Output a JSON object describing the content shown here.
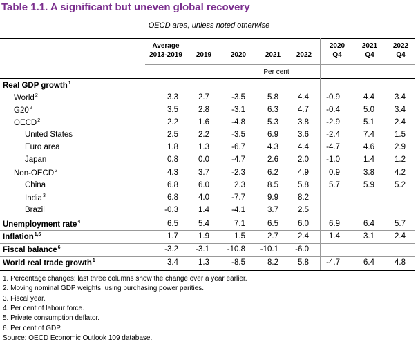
{
  "header": {
    "title": "Table 1.1. A significant but uneven global recovery",
    "subtitle": "OECD area, unless noted otherwise"
  },
  "table": {
    "columns": [
      [
        "Average",
        "2013-2019"
      ],
      [
        "2019"
      ],
      [
        "2020"
      ],
      [
        "2021"
      ],
      [
        "2022"
      ],
      [
        "2020",
        "Q4"
      ],
      [
        "2021",
        "Q4"
      ],
      [
        "2022",
        "Q4"
      ]
    ],
    "unit": "Per cent",
    "rows": [
      {
        "label": "Real GDP growth",
        "note": "1",
        "indent": 0,
        "bold": true,
        "values": [
          null,
          null,
          null,
          null,
          null,
          null,
          null,
          null
        ]
      },
      {
        "label": "World",
        "note": "2",
        "indent": 1,
        "bold": false,
        "values": [
          "3.3",
          "2.7",
          "-3.5",
          "5.8",
          "4.4",
          "-0.9",
          "4.4",
          "3.4"
        ]
      },
      {
        "label": "G20",
        "note": "2",
        "indent": 1,
        "bold": false,
        "values": [
          "3.5",
          "2.8",
          "-3.1",
          "6.3",
          "4.7",
          "-0.4",
          "5.0",
          "3.4"
        ]
      },
      {
        "label": "OECD",
        "note": "2",
        "indent": 1,
        "bold": false,
        "values": [
          "2.2",
          "1.6",
          "-4.8",
          "5.3",
          "3.8",
          "-2.9",
          "5.1",
          "2.4"
        ]
      },
      {
        "label": "United States",
        "note": null,
        "indent": 2,
        "bold": false,
        "values": [
          "2.5",
          "2.2",
          "-3.5",
          "6.9",
          "3.6",
          "-2.4",
          "7.4",
          "1.5"
        ]
      },
      {
        "label": "Euro area",
        "note": null,
        "indent": 2,
        "bold": false,
        "values": [
          "1.8",
          "1.3",
          "-6.7",
          "4.3",
          "4.4",
          "-4.7",
          "4.6",
          "2.9"
        ]
      },
      {
        "label": "Japan",
        "note": null,
        "indent": 2,
        "bold": false,
        "values": [
          "0.8",
          "0.0",
          "-4.7",
          "2.6",
          "2.0",
          "-1.0",
          "1.4",
          "1.2"
        ]
      },
      {
        "label": "Non-OECD",
        "note": "2",
        "indent": 1,
        "bold": false,
        "values": [
          "4.3",
          "3.7",
          "-2.3",
          "6.2",
          "4.9",
          "0.9",
          "3.8",
          "4.2"
        ]
      },
      {
        "label": "China",
        "note": null,
        "indent": 2,
        "bold": false,
        "values": [
          "6.8",
          "6.0",
          "2.3",
          "8.5",
          "5.8",
          "5.7",
          "5.9",
          "5.2"
        ]
      },
      {
        "label": "India",
        "note": "3",
        "indent": 2,
        "bold": false,
        "values": [
          "6.8",
          "4.0",
          "-7.7",
          "9.9",
          "8.2",
          null,
          null,
          null
        ]
      },
      {
        "label": "Brazil",
        "note": null,
        "indent": 2,
        "bold": false,
        "values": [
          "-0.3",
          "1.4",
          "-4.1",
          "3.7",
          "2.5",
          null,
          null,
          null
        ]
      },
      {
        "label": "Unemployment rate",
        "note": "4",
        "indent": 0,
        "bold": true,
        "values": [
          "6.5",
          "5.4",
          "7.1",
          "6.5",
          "6.0",
          "6.9",
          "6.4",
          "5.7"
        ]
      },
      {
        "label": "Inflation",
        "note": "1,5",
        "indent": 0,
        "bold": true,
        "values": [
          "1.7",
          "1.9",
          "1.5",
          "2.7",
          "2.4",
          "1.4",
          "3.1",
          "2.4"
        ]
      },
      {
        "label": "Fiscal balance",
        "note": "6",
        "indent": 0,
        "bold": true,
        "values": [
          "-3.2",
          "-3.1",
          "-10.8",
          "-10.1",
          "-6.0",
          null,
          null,
          null
        ]
      },
      {
        "label": "World real trade growth",
        "note": "1",
        "indent": 0,
        "bold": true,
        "values": [
          "3.4",
          "1.3",
          "-8.5",
          "8.2",
          "5.8",
          "-4.7",
          "6.4",
          "4.8"
        ]
      }
    ]
  },
  "notes": [
    "1.  Percentage changes; last three columns show the change over a year earlier.",
    "2.  Moving nominal GDP weights, using purchasing power parities.",
    "3.  Fiscal year.",
    "4.  Per cent of labour force.",
    "5.  Private consumption deflator.",
    "6.  Per cent of GDP."
  ],
  "source": "Source: OECD Economic Outlook 109 database."
}
